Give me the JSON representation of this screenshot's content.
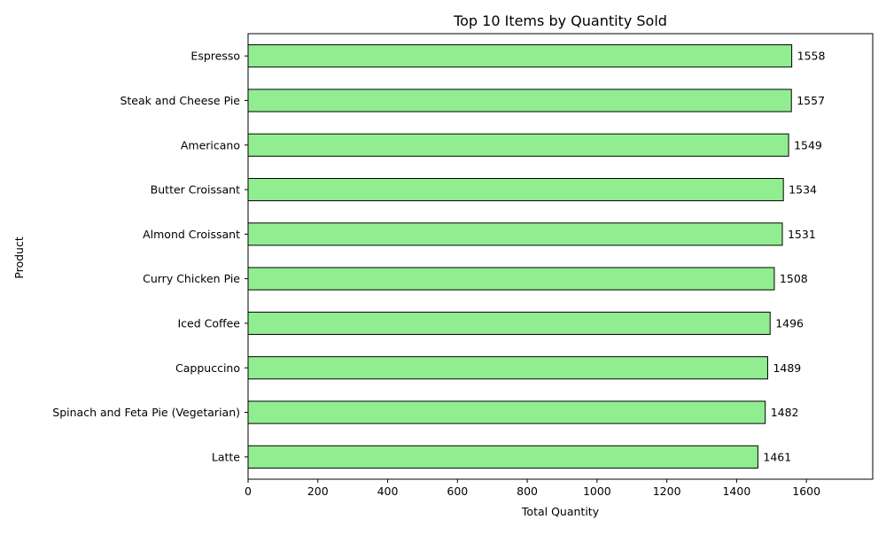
{
  "chart_data": {
    "type": "bar",
    "orientation": "horizontal",
    "title": "Top 10 Items by Quantity Sold",
    "xlabel": "Total Quantity",
    "ylabel": "Product",
    "categories": [
      "Espresso",
      "Steak and Cheese Pie",
      "Americano",
      "Butter Croissant",
      "Almond Croissant",
      "Curry Chicken Pie",
      "Iced Coffee",
      "Cappuccino",
      "Spinach and Feta Pie (Vegetarian)",
      "Latte"
    ],
    "values": [
      1558,
      1557,
      1549,
      1534,
      1531,
      1508,
      1496,
      1489,
      1482,
      1461
    ],
    "xlim": [
      0,
      1790
    ],
    "xticks": [
      0,
      200,
      400,
      600,
      800,
      1000,
      1200,
      1400,
      1600
    ],
    "grid": false,
    "bar_color": "#90ee90",
    "bar_edge_color": "#000000"
  }
}
